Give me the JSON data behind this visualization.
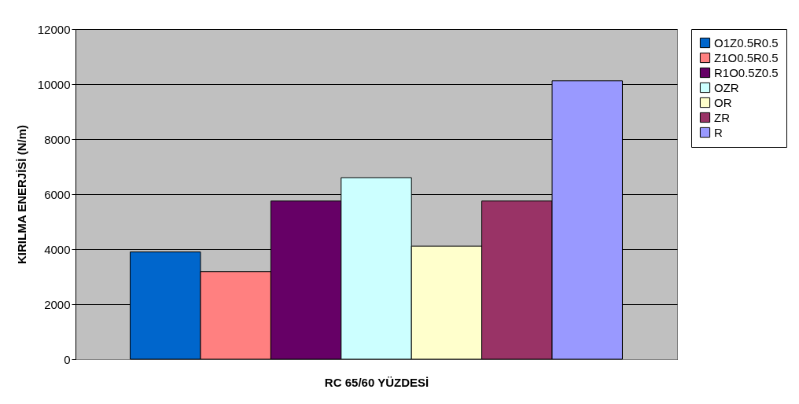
{
  "chart_data": {
    "type": "bar",
    "xlabel": "RC 65/60 YÜZDESİ",
    "ylabel": "KIRILMA ENERJİSİ (N/m)",
    "categories": [
      null
    ],
    "series": [
      {
        "name": "O1Z0.5R0.5",
        "color": "#0066cc",
        "values": [
          3900
        ]
      },
      {
        "name": "Z1O0.5R0.5",
        "color": "#ff8080",
        "values": [
          3180
        ]
      },
      {
        "name": "R1O0.5Z0.5",
        "color": "#660066",
        "values": [
          5750
        ]
      },
      {
        "name": "OZR",
        "color": "#ccffff",
        "values": [
          6600
        ]
      },
      {
        "name": "OR",
        "color": "#ffffcc",
        "values": [
          4110
        ]
      },
      {
        "name": "ZR",
        "color": "#993366",
        "values": [
          5750
        ]
      },
      {
        "name": "R",
        "color": "#9999ff",
        "values": [
          10120
        ]
      }
    ],
    "ylim": [
      0,
      12000
    ],
    "yticks": [
      0,
      2000,
      4000,
      6000,
      8000,
      10000,
      12000
    ],
    "grid": "y",
    "legend": "right"
  }
}
